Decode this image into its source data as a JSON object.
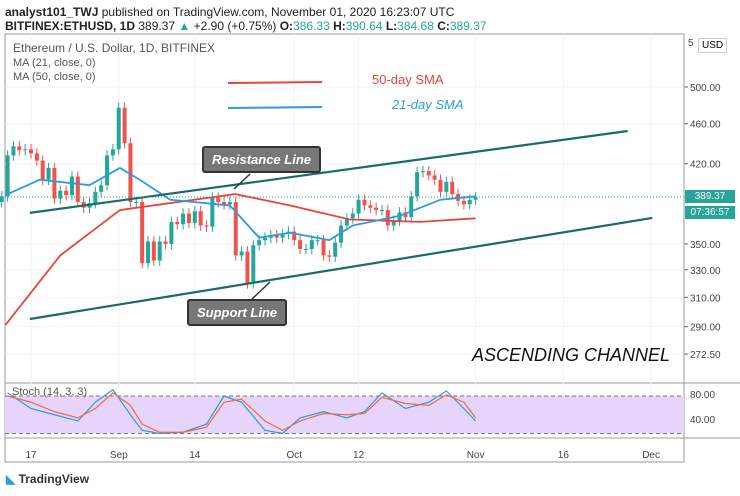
{
  "header": {
    "author": "analyst101_TWJ",
    "published": "published on TradingView.com, November 01, 2020 16:23:07 UTC",
    "symbol": "BITFINEX:ETHUSD, 1D",
    "price": "389.37",
    "change": "+2.90 (+0.75%)",
    "o_label": "O:",
    "o": "386.33",
    "h_label": "H:",
    "h": "390.64",
    "l_label": "L:",
    "l": "384.68",
    "c_label": "C:",
    "c": "389.37"
  },
  "legend": {
    "title": "Ethereum / U.S. Dollar, 1D, BITFINEX",
    "ma21": "MA (21, close, 0)",
    "ma50": "MA (50, close, 0)",
    "stoch": "Stoch (14, 3, 3)"
  },
  "annotations": {
    "sma50": "50-day SMA",
    "sma21": "21-day SMA",
    "resistance": "Resistance Line",
    "support": "Support Line",
    "channel": "ASCENDING CHANNEL"
  },
  "axis": {
    "currency": "USD",
    "top_partial": "5",
    "last_price": "389.37",
    "countdown": "07:36:57",
    "stoch_ticks": [
      "80.00",
      "40.00"
    ]
  },
  "footer": {
    "brand": "TradingView"
  },
  "colors": {
    "up": "#26a69a",
    "down": "#ef5350",
    "sma50": "#e8453c",
    "sma21": "#2d9be0",
    "channel": "#1b6b67",
    "stoch_band": "#e6d4fb"
  },
  "chart_data": {
    "type": "candlestick",
    "title": "Ethereum / U.S. Dollar, 1D, BITFINEX",
    "start_date": "2020-08-12",
    "closes": [
      390,
      428,
      437,
      433,
      434,
      430,
      423,
      405,
      416,
      388,
      395,
      391,
      408,
      385,
      380,
      384,
      394,
      400,
      428,
      434,
      477,
      440,
      385,
      385,
      335,
      352,
      337,
      352,
      350,
      368,
      366,
      375,
      367,
      377,
      365,
      364,
      389,
      385,
      383,
      385,
      341,
      344,
      320,
      349,
      353,
      355,
      357,
      355,
      358,
      360,
      353,
      346,
      346,
      353,
      353,
      341,
      340,
      351,
      365,
      371,
      375,
      387,
      382,
      380,
      378,
      378,
      365,
      369,
      376,
      372,
      390,
      412,
      413,
      409,
      405,
      394,
      403,
      392,
      386,
      383,
      387,
      389
    ],
    "y_ticks": [
      500,
      460,
      420,
      350,
      330,
      310,
      290,
      272.5
    ],
    "x_ticks": [
      {
        "day": 0,
        "label": "17"
      },
      {
        "day": 15,
        "label": "Sep"
      },
      {
        "day": 28,
        "label": "14"
      },
      {
        "day": 45,
        "label": "Oct"
      },
      {
        "day": 56,
        "label": "12"
      },
      {
        "day": 76,
        "label": "Nov"
      },
      {
        "day": 91,
        "label": "16"
      },
      {
        "day": 106,
        "label": "Dec"
      }
    ],
    "sma50": [
      [
        -4.4,
        291
      ],
      [
        5,
        341
      ],
      [
        15.2,
        378
      ],
      [
        34.9,
        392
      ],
      [
        44.3,
        382
      ],
      [
        54.5,
        370
      ],
      [
        66.5,
        368
      ],
      [
        76,
        371
      ]
    ],
    "sma21": [
      [
        -4.4,
        391
      ],
      [
        1.5,
        405
      ],
      [
        10,
        400
      ],
      [
        15.2,
        416
      ],
      [
        18.6,
        405
      ],
      [
        23.8,
        387
      ],
      [
        34,
        382
      ],
      [
        39,
        355
      ],
      [
        44.3,
        359
      ],
      [
        51,
        353
      ],
      [
        55,
        365
      ],
      [
        63,
        373
      ],
      [
        70,
        387
      ],
      [
        76,
        390
      ]
    ],
    "resistance": [
      [
        -0.2,
        375.6
      ],
      [
        102,
        452.4
      ]
    ],
    "support": [
      [
        -0.2,
        295.1
      ],
      [
        106.2,
        371.3
      ]
    ],
    "stoch_k": [
      [
        -4,
        85
      ],
      [
        0,
        60
      ],
      [
        4,
        50
      ],
      [
        8,
        40
      ],
      [
        11,
        70
      ],
      [
        14,
        90
      ],
      [
        17,
        50
      ],
      [
        19,
        25
      ],
      [
        22,
        20
      ],
      [
        26,
        22
      ],
      [
        30,
        35
      ],
      [
        33,
        80
      ],
      [
        36,
        70
      ],
      [
        40,
        25
      ],
      [
        43,
        20
      ],
      [
        46,
        45
      ],
      [
        50,
        55
      ],
      [
        54,
        45
      ],
      [
        57,
        55
      ],
      [
        60,
        85
      ],
      [
        64,
        60
      ],
      [
        68,
        70
      ],
      [
        71,
        88
      ],
      [
        74,
        60
      ],
      [
        76,
        40
      ]
    ],
    "stoch_d": [
      [
        -4,
        80
      ],
      [
        0,
        70
      ],
      [
        4,
        55
      ],
      [
        8,
        45
      ],
      [
        11,
        60
      ],
      [
        14,
        85
      ],
      [
        17,
        65
      ],
      [
        19,
        35
      ],
      [
        22,
        22
      ],
      [
        26,
        22
      ],
      [
        30,
        30
      ],
      [
        33,
        70
      ],
      [
        36,
        75
      ],
      [
        40,
        40
      ],
      [
        43,
        25
      ],
      [
        46,
        40
      ],
      [
        50,
        52
      ],
      [
        54,
        50
      ],
      [
        57,
        52
      ],
      [
        60,
        78
      ],
      [
        64,
        68
      ],
      [
        68,
        65
      ],
      [
        71,
        82
      ],
      [
        74,
        70
      ],
      [
        76,
        45
      ]
    ]
  }
}
